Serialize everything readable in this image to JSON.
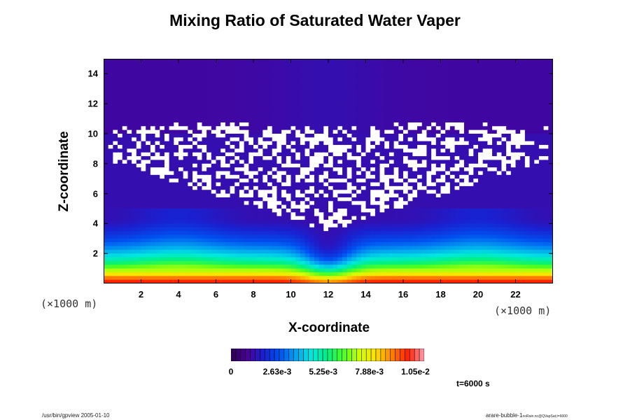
{
  "chart_data": {
    "type": "heatmap",
    "title": "Mixing Ratio of Saturated Water Vaper",
    "xlabel": "X-coordinate",
    "ylabel": "Z-coordinate",
    "x_unit": "(×1000 m)",
    "y_unit": "(×1000 m)",
    "xlim": [
      0,
      24
    ],
    "ylim": [
      0,
      15
    ],
    "x_ticks": [
      2,
      4,
      6,
      8,
      10,
      12,
      14,
      16,
      18,
      20,
      22
    ],
    "y_ticks": [
      2,
      4,
      6,
      8,
      10,
      12,
      14
    ],
    "colorbar": {
      "min": 0,
      "max": 0.011,
      "tick_labels": [
        "0",
        "2.63e-3",
        "5.25e-3",
        "7.88e-3",
        "1.05e-2"
      ],
      "tick_values": [
        0,
        0.00263,
        0.00525,
        0.00788,
        0.0105
      ],
      "colors": [
        "#2a0050",
        "#4a0096",
        "#1a20d0",
        "#0050f0",
        "#00a0f0",
        "#00e8e0",
        "#00f080",
        "#50ff20",
        "#d0ff00",
        "#ffe000",
        "#ff8000",
        "#ff2000",
        "#ffa0b0"
      ]
    },
    "field_description_values": {
      "surface_max": 0.011,
      "upper_min": 0.0002
    },
    "annotation": "t=6000 s"
  },
  "footer": {
    "left": "/usr/bin/gpview 2005-01-10",
    "right_main": "arare-bubble-1",
    "right_sub": "noRain.nc@QVapSat,t=6000"
  }
}
